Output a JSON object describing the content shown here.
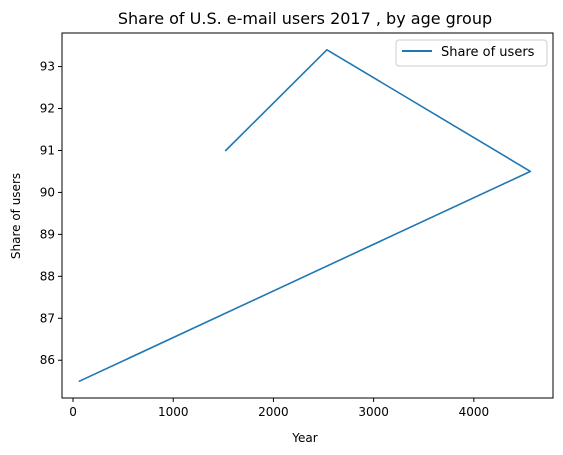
{
  "chart_data": {
    "type": "line",
    "title": "Share of U.S. e-mail users 2017 , by age group",
    "xlabel": "Year",
    "ylabel": "Share of users",
    "xlim": [
      -110,
      4790
    ],
    "ylim": [
      85.1,
      93.8
    ],
    "x_ticks": [
      0,
      1000,
      2000,
      3000,
      4000
    ],
    "y_ticks": [
      86,
      87,
      88,
      89,
      90,
      91,
      92,
      93
    ],
    "legend_position": "top-right",
    "grid": false,
    "series": [
      {
        "name": "Share of users",
        "color": "#1f77b4",
        "x": [
          1524,
          2534,
          4564,
          64
        ],
        "y": [
          91.0,
          93.4,
          90.5,
          85.5
        ]
      }
    ]
  }
}
